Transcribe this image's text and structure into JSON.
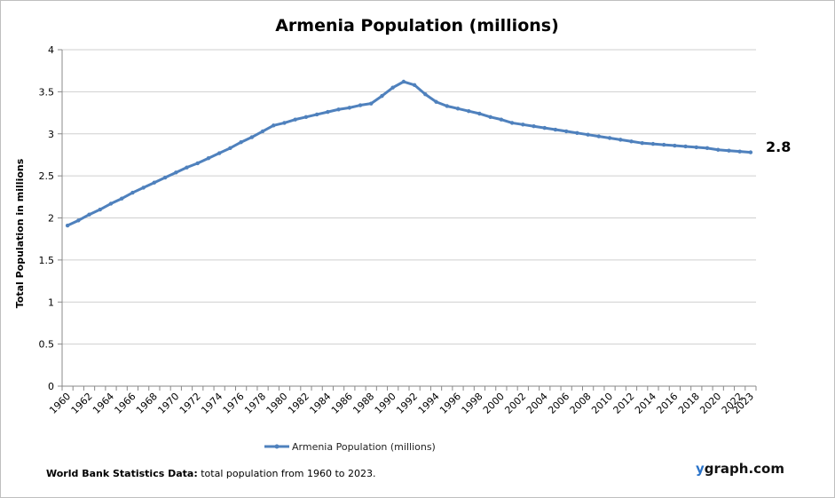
{
  "chart_data": {
    "type": "line",
    "title": "Armenia Population (millions)",
    "xlabel": "",
    "ylabel": "Total Population  in millions",
    "ylim": [
      0,
      4
    ],
    "yticks": [
      0,
      0.5,
      1,
      1.5,
      2,
      2.5,
      3,
      3.5,
      4
    ],
    "ytick_labels": [
      "0",
      "0.5",
      "1",
      "1.5",
      "2",
      "2.5",
      "3",
      "3.5",
      "4"
    ],
    "xlim": [
      1960,
      2023
    ],
    "xtick_labels": [
      "1960",
      "1962",
      "1964",
      "1966",
      "1968",
      "1970",
      "1972",
      "1974",
      "1976",
      "1978",
      "1980",
      "1982",
      "1984",
      "1986",
      "1988",
      "1990",
      "1992",
      "1994",
      "1996",
      "1998",
      "2000",
      "2002",
      "2004",
      "2006",
      "2008",
      "2010",
      "2012",
      "2014",
      "2016",
      "2018",
      "2020",
      "2022",
      "2023"
    ],
    "grid": true,
    "legend_position": "bottom",
    "series": [
      {
        "name": "Armenia Population (millions)",
        "color": "#4f81bd",
        "x": [
          1960,
          1961,
          1962,
          1963,
          1964,
          1965,
          1966,
          1967,
          1968,
          1969,
          1970,
          1971,
          1972,
          1973,
          1974,
          1975,
          1976,
          1977,
          1978,
          1979,
          1980,
          1981,
          1982,
          1983,
          1984,
          1985,
          1986,
          1987,
          1988,
          1989,
          1990,
          1991,
          1992,
          1993,
          1994,
          1995,
          1996,
          1997,
          1998,
          1999,
          2000,
          2001,
          2002,
          2003,
          2004,
          2005,
          2006,
          2007,
          2008,
          2009,
          2010,
          2011,
          2012,
          2013,
          2014,
          2015,
          2016,
          2017,
          2018,
          2019,
          2020,
          2021,
          2022,
          2023
        ],
        "values": [
          1.91,
          1.97,
          2.04,
          2.1,
          2.17,
          2.23,
          2.3,
          2.36,
          2.42,
          2.48,
          2.54,
          2.6,
          2.65,
          2.71,
          2.77,
          2.83,
          2.9,
          2.96,
          3.03,
          3.1,
          3.13,
          3.17,
          3.2,
          3.23,
          3.26,
          3.29,
          3.31,
          3.34,
          3.36,
          3.45,
          3.55,
          3.62,
          3.58,
          3.47,
          3.38,
          3.33,
          3.3,
          3.27,
          3.24,
          3.2,
          3.17,
          3.13,
          3.11,
          3.09,
          3.07,
          3.05,
          3.03,
          3.01,
          2.99,
          2.97,
          2.95,
          2.93,
          2.91,
          2.89,
          2.88,
          2.87,
          2.86,
          2.85,
          2.84,
          2.83,
          2.81,
          2.8,
          2.79,
          2.78
        ]
      }
    ],
    "last_value_label": "2.8"
  },
  "footer": {
    "source_bold": "World Bank Statistics Data:",
    "source_text": " total population from 1960 to 2023."
  },
  "brand": {
    "y": "y",
    "rest": "graph.com"
  }
}
